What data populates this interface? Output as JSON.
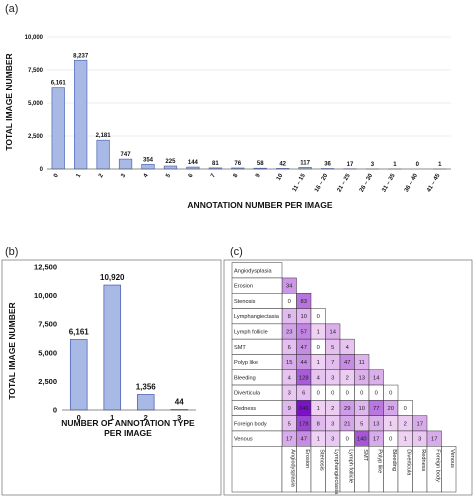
{
  "chart_data": [
    {
      "panel": "(a)",
      "type": "bar",
      "ylabel": "TOTAL IMAGE NUMBER",
      "xlabel": "ANNOTATION NUMBER PER IMAGE",
      "ylim": [
        0,
        10000
      ],
      "yticks": [
        "0",
        "2,500",
        "5,000",
        "7,500",
        "10,000"
      ],
      "categories": [
        "0",
        "1",
        "2",
        "3",
        "4",
        "5",
        "6",
        "7",
        "8",
        "9",
        "10",
        "11 – 15",
        "16 – 20",
        "21 – 25",
        "26 – 30",
        "31 – 35",
        "36 – 40",
        "41 – 45"
      ],
      "values": [
        6161,
        8237,
        2181,
        747,
        354,
        225,
        144,
        81,
        76,
        58,
        42,
        117,
        36,
        17,
        3,
        1,
        0,
        1
      ],
      "labels": [
        "6,161",
        "8,237",
        "2,181",
        "747",
        "354",
        "225",
        "144",
        "81",
        "76",
        "58",
        "42",
        "117",
        "36",
        "17",
        "3",
        "1",
        "0",
        "1"
      ]
    },
    {
      "panel": "(b)",
      "type": "bar",
      "ylabel": "TOTAL IMAGE NUMBER",
      "xlabel": [
        "NUMBER OF ANNOTATION TYPE",
        "PER IMAGE"
      ],
      "ylim": [
        0,
        12500
      ],
      "yticks": [
        "0",
        "2,500",
        "5,000",
        "7,500",
        "10,000",
        "12,500"
      ],
      "categories": [
        "0",
        "1",
        "2",
        "3"
      ],
      "values": [
        6161,
        10920,
        1356,
        44
      ],
      "labels": [
        "6,161",
        "10,920",
        "1,356",
        "44"
      ]
    },
    {
      "panel": "(c)",
      "type": "heatmap",
      "labels": [
        "Angiodysplasia",
        "Erosion",
        "Stenosis",
        "Lymphangiectasia",
        "Lymph follicle",
        "SMT",
        "Polyp like",
        "Bleeding",
        "Diverticula",
        "Redness",
        "Foreign body",
        "Venous"
      ],
      "matrix": [
        [],
        [
          "34"
        ],
        [
          "0",
          "83"
        ],
        [
          "8",
          "10",
          "0"
        ],
        [
          "23",
          "57",
          "1",
          "14"
        ],
        [
          "6",
          "47",
          "0",
          "5",
          "4"
        ],
        [
          "15",
          "44",
          "1",
          "7",
          "47",
          "11"
        ],
        [
          "4",
          "128",
          "4",
          "3",
          "2",
          "13",
          "14"
        ],
        [
          "3",
          "6",
          "0",
          "0",
          "0",
          "0",
          "0",
          "0"
        ],
        [
          "9",
          "346",
          "1",
          "2",
          "29",
          "10",
          "77",
          "20",
          "0"
        ],
        [
          "5",
          "178",
          "8",
          "3",
          "21",
          "5",
          "13",
          "1",
          "2",
          "17"
        ],
        [
          "17",
          "47",
          "1",
          "3",
          "0",
          "140",
          "17",
          "0",
          "1",
          "3",
          "17"
        ]
      ]
    }
  ]
}
